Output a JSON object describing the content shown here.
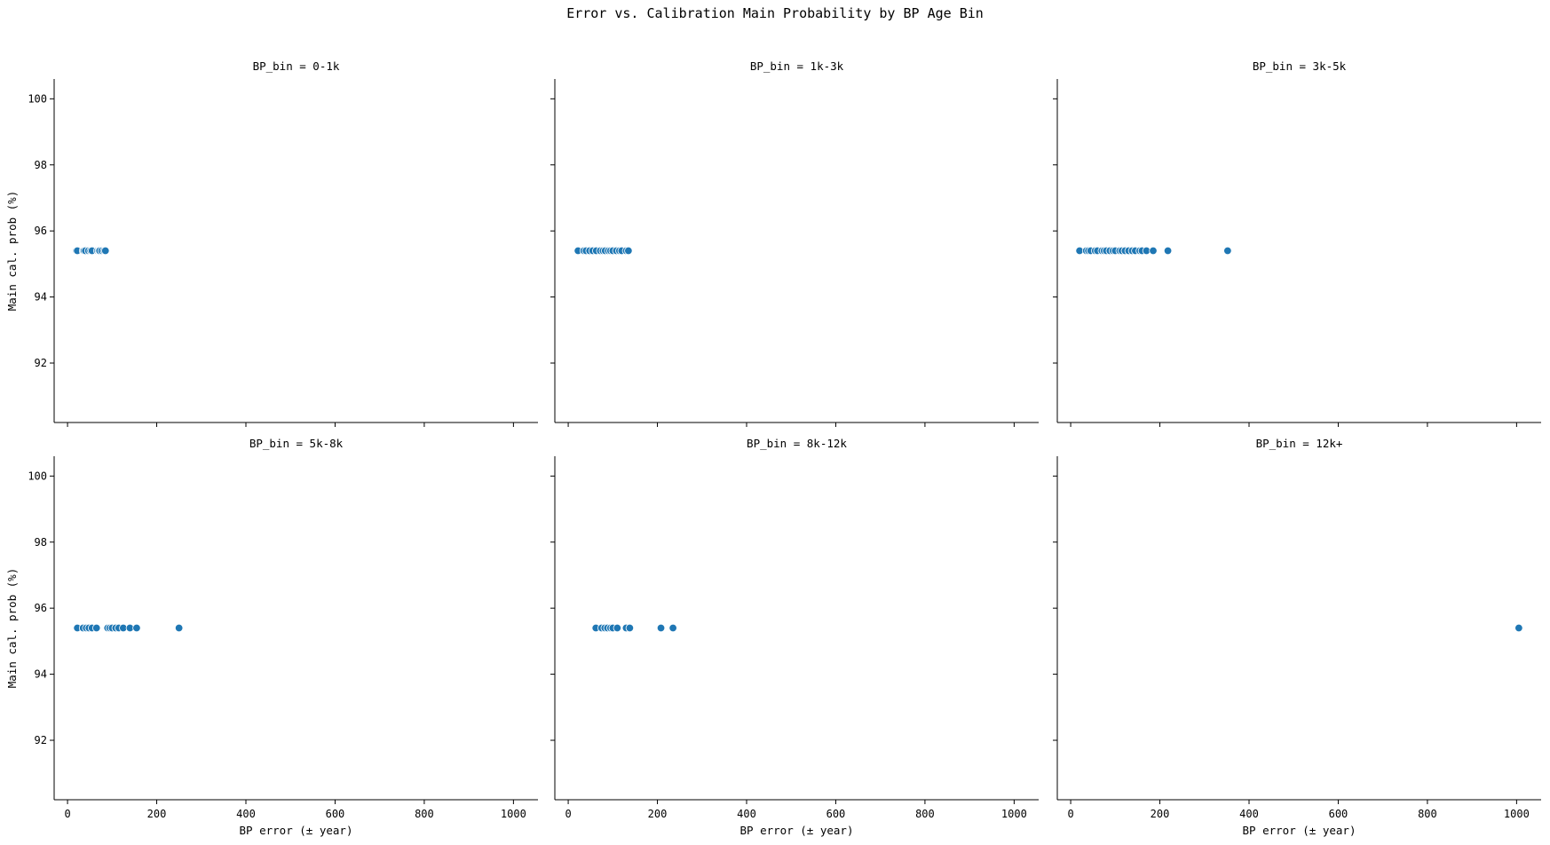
{
  "figure": {
    "title": "Error vs. Calibration Main Probability by BP Age Bin"
  },
  "colors": {
    "marker": "#1f77b4",
    "marker_edge": "#ffffff",
    "axis": "#000000"
  },
  "chart_data": [
    {
      "type": "scatter",
      "title": "BP_bin = 0-1k",
      "xlabel": "",
      "ylabel": "Main cal. prob (%)",
      "xlim": [
        -30,
        1055
      ],
      "ylim": [
        90.2,
        100.6
      ],
      "xticks": [
        0,
        200,
        400,
        600,
        800,
        1000
      ],
      "yticks": [
        92,
        94,
        96,
        98,
        100
      ],
      "show_xticklabels": false,
      "show_yticklabels": true,
      "grid": false,
      "points": [
        [
          20,
          95.4
        ],
        [
          22,
          95.4
        ],
        [
          35,
          95.4
        ],
        [
          37,
          95.4
        ],
        [
          40,
          95.4
        ],
        [
          47,
          95.4
        ],
        [
          52,
          95.4
        ],
        [
          55,
          95.4
        ],
        [
          67,
          95.4
        ],
        [
          70,
          95.4
        ],
        [
          72,
          95.4
        ],
        [
          77,
          95.4
        ],
        [
          82,
          95.4
        ],
        [
          85,
          95.4
        ]
      ]
    },
    {
      "type": "scatter",
      "title": "BP_bin = 1k-3k",
      "xlabel": "",
      "ylabel": "",
      "xlim": [
        -30,
        1055
      ],
      "ylim": [
        90.2,
        100.6
      ],
      "xticks": [
        0,
        200,
        400,
        600,
        800,
        1000
      ],
      "yticks": [
        92,
        94,
        96,
        98,
        100
      ],
      "show_xticklabels": false,
      "show_yticklabels": false,
      "grid": false,
      "points": [
        [
          22,
          95.4
        ],
        [
          35,
          95.4
        ],
        [
          40,
          95.4
        ],
        [
          48,
          95.4
        ],
        [
          55,
          95.4
        ],
        [
          63,
          95.4
        ],
        [
          72,
          95.4
        ],
        [
          78,
          95.4
        ],
        [
          83,
          95.4
        ],
        [
          90,
          95.4
        ],
        [
          95,
          95.4
        ],
        [
          100,
          95.4
        ],
        [
          108,
          95.4
        ],
        [
          115,
          95.4
        ],
        [
          120,
          95.4
        ],
        [
          130,
          95.4
        ],
        [
          135,
          95.4
        ]
      ]
    },
    {
      "type": "scatter",
      "title": "BP_bin = 3k-5k",
      "xlabel": "",
      "ylabel": "",
      "xlim": [
        -30,
        1055
      ],
      "ylim": [
        90.2,
        100.6
      ],
      "xticks": [
        0,
        200,
        400,
        600,
        800,
        1000
      ],
      "yticks": [
        92,
        94,
        96,
        98,
        100
      ],
      "show_xticklabels": false,
      "show_yticklabels": false,
      "grid": false,
      "points": [
        [
          20,
          95.4
        ],
        [
          35,
          95.4
        ],
        [
          40,
          95.4
        ],
        [
          45,
          95.4
        ],
        [
          55,
          95.4
        ],
        [
          60,
          95.4
        ],
        [
          70,
          95.4
        ],
        [
          75,
          95.4
        ],
        [
          80,
          95.4
        ],
        [
          88,
          95.4
        ],
        [
          95,
          95.4
        ],
        [
          100,
          95.4
        ],
        [
          110,
          95.4
        ],
        [
          115,
          95.4
        ],
        [
          122,
          95.4
        ],
        [
          130,
          95.4
        ],
        [
          138,
          95.4
        ],
        [
          145,
          95.4
        ],
        [
          155,
          95.4
        ],
        [
          160,
          95.4
        ],
        [
          170,
          95.4
        ],
        [
          185,
          95.4
        ],
        [
          218,
          95.4
        ],
        [
          352,
          95.4
        ]
      ]
    },
    {
      "type": "scatter",
      "title": "BP_bin = 5k-8k",
      "xlabel": "BP error (± year)",
      "ylabel": "Main cal. prob (%)",
      "xlim": [
        -30,
        1055
      ],
      "ylim": [
        90.2,
        100.6
      ],
      "xticks": [
        0,
        200,
        400,
        600,
        800,
        1000
      ],
      "yticks": [
        92,
        94,
        96,
        98,
        100
      ],
      "show_xticklabels": true,
      "show_yticklabels": true,
      "grid": false,
      "points": [
        [
          22,
          95.4
        ],
        [
          35,
          95.4
        ],
        [
          42,
          95.4
        ],
        [
          48,
          95.4
        ],
        [
          55,
          95.4
        ],
        [
          65,
          95.4
        ],
        [
          90,
          95.4
        ],
        [
          95,
          95.4
        ],
        [
          100,
          95.4
        ],
        [
          108,
          95.4
        ],
        [
          115,
          95.4
        ],
        [
          125,
          95.4
        ],
        [
          140,
          95.4
        ],
        [
          155,
          95.4
        ],
        [
          250,
          95.4
        ]
      ]
    },
    {
      "type": "scatter",
      "title": "BP_bin = 8k-12k",
      "xlabel": "BP error (± year)",
      "ylabel": "",
      "xlim": [
        -30,
        1055
      ],
      "ylim": [
        90.2,
        100.6
      ],
      "xticks": [
        0,
        200,
        400,
        600,
        800,
        1000
      ],
      "yticks": [
        92,
        94,
        96,
        98,
        100
      ],
      "show_xticklabels": true,
      "show_yticklabels": false,
      "grid": false,
      "points": [
        [
          62,
          95.4
        ],
        [
          75,
          95.4
        ],
        [
          82,
          95.4
        ],
        [
          88,
          95.4
        ],
        [
          95,
          95.4
        ],
        [
          100,
          95.4
        ],
        [
          110,
          95.4
        ],
        [
          130,
          95.4
        ],
        [
          138,
          95.4
        ],
        [
          208,
          95.4
        ],
        [
          235,
          95.4
        ]
      ]
    },
    {
      "type": "scatter",
      "title": "BP_bin = 12k+",
      "xlabel": "BP error (± year)",
      "ylabel": "",
      "xlim": [
        -30,
        1055
      ],
      "ylim": [
        90.2,
        100.6
      ],
      "xticks": [
        0,
        200,
        400,
        600,
        800,
        1000
      ],
      "yticks": [
        92,
        94,
        96,
        98,
        100
      ],
      "show_xticklabels": true,
      "show_yticklabels": false,
      "grid": false,
      "points": [
        [
          1005,
          95.4
        ]
      ]
    }
  ]
}
